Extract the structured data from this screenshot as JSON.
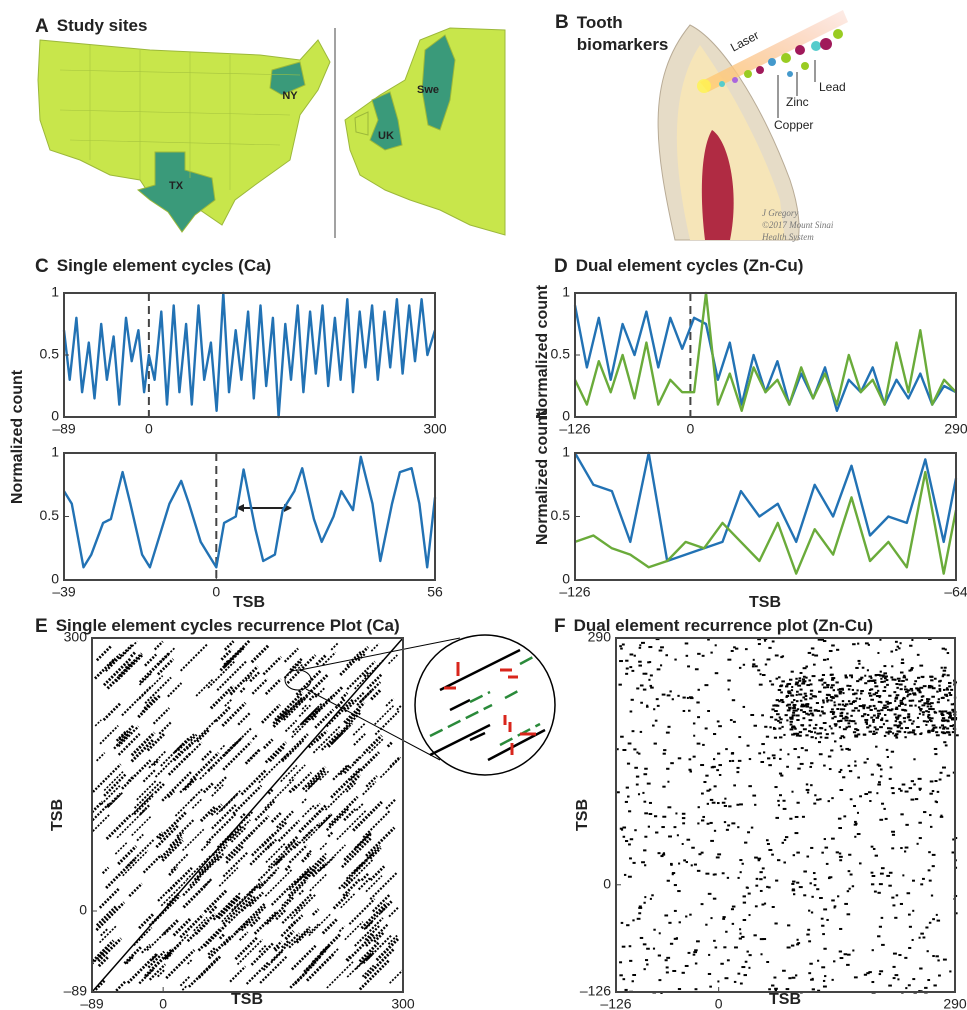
{
  "panels": [
    {
      "letter": "A",
      "title": "Study sites"
    },
    {
      "letter": "B",
      "title": "Tooth biomarkers"
    },
    {
      "letter": "C",
      "title": "Single element cycles (Ca)"
    },
    {
      "letter": "D",
      "title": "Dual element cycles (Zn-Cu)"
    },
    {
      "letter": "E",
      "title": "Single element cycles recurrence Plot (Ca)"
    },
    {
      "letter": "F",
      "title": "Dual element recurrence plot (Zn-Cu)"
    }
  ],
  "map_labels": [
    "NY",
    "TX",
    "UK",
    "Swe"
  ],
  "illustration_labels": [
    "Laser",
    "Lead",
    "Zinc",
    "Copper"
  ],
  "credit": [
    "J Gregory",
    "©2017 Mount Sinai",
    "Health System"
  ],
  "chart_data": [
    {
      "type": "line",
      "ylabel": "Normalized count",
      "x": [
        -89,
        -83,
        -76,
        -70,
        -63,
        -57,
        -50,
        -44,
        -37,
        -31,
        -24,
        -18,
        -11,
        -5,
        0,
        6,
        13,
        19,
        26,
        32,
        39,
        45,
        52,
        58,
        65,
        71,
        78,
        84,
        91,
        97,
        104,
        110,
        117,
        123,
        130,
        136,
        143,
        149,
        156,
        162,
        169,
        175,
        182,
        188,
        195,
        201,
        208,
        214,
        221,
        227,
        234,
        240,
        247,
        253,
        260,
        266,
        273,
        279,
        286,
        292,
        300
      ],
      "series": [
        {
          "color": "#2272b4",
          "values": [
            0.7,
            0.3,
            0.8,
            0.2,
            0.6,
            0.15,
            0.75,
            0.3,
            0.65,
            0.1,
            0.8,
            0.45,
            0.7,
            0.2,
            0.5,
            0.3,
            0.85,
            0.1,
            0.9,
            0.2,
            0.75,
            0.1,
            0.9,
            0.3,
            0.6,
            0.05,
            1.0,
            0.2,
            0.7,
            0.3,
            0.85,
            0.15,
            0.9,
            0.25,
            0.8,
            0.0,
            0.75,
            0.3,
            0.9,
            0.2,
            0.85,
            0.35,
            0.9,
            0.25,
            0.8,
            0.3,
            0.95,
            0.2,
            0.85,
            0.4,
            0.9,
            0.3,
            0.85,
            0.4,
            0.95,
            0.35,
            0.9,
            0.45,
            0.95,
            0.5,
            0.7
          ]
        }
      ],
      "xlim": [
        -89,
        300
      ],
      "ylim": [
        0,
        1
      ],
      "xticks": [
        {
          "value": -89,
          "label": "–89"
        },
        0,
        300
      ],
      "yticks": [
        0,
        0.5,
        1
      ]
    },
    {
      "type": "line",
      "xlabel": "TSB",
      "x": [
        -39,
        -37,
        -34,
        -32,
        -29,
        -27,
        -24,
        -22,
        -19,
        -17,
        -14,
        -12,
        -9,
        -7,
        -4,
        -2,
        0,
        2,
        5,
        7,
        10,
        12,
        15,
        17,
        20,
        22,
        25,
        27,
        30,
        32,
        35,
        37,
        40,
        42,
        45,
        47,
        50,
        52,
        54,
        56
      ],
      "series": [
        {
          "color": "#2272b4",
          "values": [
            0.7,
            0.6,
            0.1,
            0.2,
            0.45,
            0.48,
            0.85,
            0.6,
            0.2,
            0.1,
            0.4,
            0.6,
            0.78,
            0.6,
            0.3,
            0.2,
            0.1,
            0.45,
            0.5,
            0.87,
            0.4,
            0.15,
            0.2,
            0.55,
            0.7,
            0.88,
            0.48,
            0.3,
            0.5,
            0.7,
            0.55,
            0.97,
            0.6,
            0.15,
            0.6,
            0.85,
            0.88,
            0.6,
            0.1,
            0.65
          ]
        }
      ],
      "xlim": [
        -39,
        56
      ],
      "ylim": [
        0,
        1
      ],
      "xticks": [
        {
          "value": -39,
          "label": "–39"
        },
        0,
        56
      ],
      "yticks": [
        0,
        0.5,
        1
      ]
    },
    {
      "type": "line",
      "ylabel": "Normalized count",
      "x": [
        -126,
        -113,
        -100,
        -87,
        -74,
        -61,
        -48,
        -35,
        -22,
        -9,
        4,
        17,
        30,
        43,
        56,
        69,
        82,
        95,
        108,
        121,
        134,
        147,
        160,
        173,
        186,
        199,
        212,
        225,
        238,
        251,
        264,
        277,
        290
      ],
      "series": [
        {
          "color": "#2272b4",
          "values": [
            0.9,
            0.4,
            0.8,
            0.3,
            0.75,
            0.5,
            0.85,
            0.4,
            0.8,
            0.55,
            0.8,
            0.75,
            0.3,
            0.6,
            0.1,
            0.5,
            0.2,
            0.45,
            0.1,
            0.35,
            0.15,
            0.4,
            0.05,
            0.3,
            0.2,
            0.4,
            0.1,
            0.3,
            0.15,
            0.35,
            0.1,
            0.25,
            0.2
          ]
        },
        {
          "color": "#6aab3a",
          "values": [
            0.3,
            0.1,
            0.45,
            0.2,
            0.5,
            0.15,
            0.6,
            0.1,
            0.3,
            0.2,
            0.2,
            1.0,
            0.1,
            0.35,
            0.05,
            0.4,
            0.2,
            0.3,
            0.1,
            0.4,
            0.15,
            0.35,
            0.1,
            0.5,
            0.2,
            0.3,
            0.1,
            0.6,
            0.2,
            0.7,
            0.1,
            0.3,
            0.2
          ]
        }
      ],
      "xlim": [
        -126,
        290
      ],
      "ylim": [
        0,
        1
      ],
      "xticks": [
        {
          "value": -126,
          "label": "–126"
        },
        0,
        290
      ],
      "yticks": [
        0,
        0.5,
        1
      ]
    },
    {
      "type": "line",
      "ylabel": "Normalized count",
      "xlabel": "TSB",
      "x": [
        -126,
        -123,
        -120,
        -117,
        -114,
        -111,
        -108,
        -105,
        -102,
        -99,
        -96,
        -93,
        -90,
        -87,
        -84,
        -81,
        -78,
        -75,
        -72,
        -69,
        -66,
        -64
      ],
      "series": [
        {
          "color": "#2272b4",
          "values": [
            1.0,
            0.75,
            0.7,
            0.3,
            1.0,
            0.15,
            0.2,
            0.25,
            0.3,
            0.7,
            0.5,
            0.6,
            0.3,
            0.75,
            0.5,
            0.9,
            0.35,
            0.5,
            0.45,
            0.95,
            0.3,
            0.8
          ]
        },
        {
          "color": "#6aab3a",
          "values": [
            0.3,
            0.35,
            0.25,
            0.2,
            0.1,
            0.15,
            0.3,
            0.25,
            0.45,
            0.3,
            0.15,
            0.45,
            0.05,
            0.4,
            0.2,
            0.65,
            0.15,
            0.3,
            0.1,
            0.85,
            0.05,
            0.55
          ]
        }
      ],
      "xlim": [
        -126,
        -64
      ],
      "ylim": [
        0,
        1
      ],
      "xticks": [
        {
          "value": -126,
          "label": "–126"
        },
        {
          "value": -64,
          "label": "–64"
        }
      ],
      "yticks": [
        0,
        0.5,
        1
      ]
    },
    {
      "type": "recurrence",
      "xlabel": "TSB",
      "ylabel": "TSB",
      "xlim": [
        -89,
        300
      ],
      "ylim": [
        -89,
        300
      ],
      "xticks": [
        {
          "value": -89,
          "label": "–89"
        },
        0,
        300
      ],
      "yticks": [
        {
          "value": -89,
          "label": "–89"
        },
        0,
        300
      ]
    },
    {
      "type": "recurrence",
      "xlabel": "TSB",
      "ylabel": "TSB",
      "xlim": [
        -126,
        290
      ],
      "ylim": [
        -126,
        290
      ],
      "xticks": [
        {
          "value": -126,
          "label": "–126"
        },
        0,
        290
      ],
      "yticks": [
        {
          "value": -126,
          "label": "–126"
        },
        0,
        290
      ]
    }
  ]
}
